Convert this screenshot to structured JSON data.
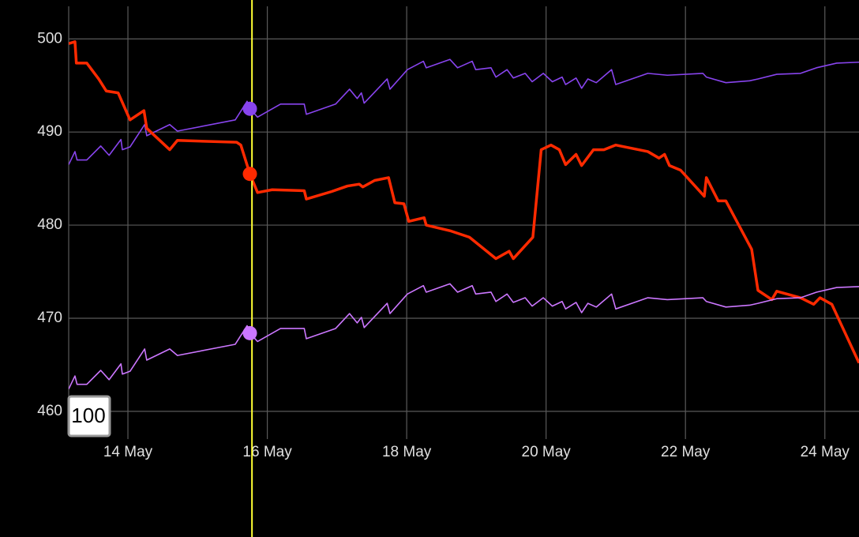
{
  "chart_data": {
    "type": "line",
    "grid": true,
    "xlim": [
      13.15,
      24.49
    ],
    "ylim": [
      457.7,
      503.5
    ],
    "xticks": [
      {
        "value": 14,
        "label": "14 May"
      },
      {
        "value": 16,
        "label": "16 May"
      },
      {
        "value": 18,
        "label": "18 May"
      },
      {
        "value": 20,
        "label": "20 May"
      },
      {
        "value": 22,
        "label": "22 May"
      },
      {
        "value": 24,
        "label": "24 May"
      }
    ],
    "yticks": [
      460,
      470,
      480,
      490,
      500
    ],
    "cursor_x": 15.78,
    "cursor_color": "#ffff33",
    "badge": "100",
    "series": [
      {
        "color": "#8844ee",
        "width": 1.6,
        "x": [
          13.15,
          13.24,
          13.27,
          13.41,
          13.61,
          13.73,
          13.9,
          13.92,
          14.03,
          14.24,
          14.27,
          14.6,
          14.71,
          15.54,
          15.71,
          15.75,
          15.86,
          16.19,
          16.53,
          16.56,
          16.98,
          17.18,
          17.29,
          17.35,
          17.39,
          17.72,
          17.76,
          18.01,
          18.24,
          18.28,
          18.62,
          18.73,
          18.94,
          18.99,
          19.21,
          19.28,
          19.44,
          19.53,
          19.7,
          19.8,
          19.96,
          20.09,
          20.23,
          20.28,
          20.43,
          20.51,
          20.6,
          20.72,
          20.94,
          21.0,
          21.46,
          21.74,
          22.25,
          22.3,
          22.58,
          22.92,
          23.04,
          23.31,
          23.65,
          23.88,
          24.17,
          24.49
        ],
        "values": [
          486.5,
          487.9,
          487,
          487,
          488.5,
          487.5,
          489.2,
          488.1,
          488.4,
          490.8,
          489.6,
          490.8,
          490.1,
          491.3,
          493.3,
          492.5,
          491.6,
          493,
          493,
          491.9,
          493,
          494.6,
          493.6,
          494.2,
          493.1,
          495.7,
          494.6,
          496.7,
          497.6,
          496.9,
          497.8,
          496.9,
          497.6,
          496.7,
          496.9,
          495.9,
          496.7,
          495.8,
          496.3,
          495.4,
          496.3,
          495.4,
          495.9,
          495.1,
          495.8,
          494.7,
          495.7,
          495.3,
          496.7,
          495.1,
          496.3,
          496.1,
          496.3,
          495.9,
          495.3,
          495.5,
          495.7,
          496.2,
          496.3,
          496.9,
          497.4,
          497.5
        ]
      },
      {
        "color": "#ff2a00",
        "width": 3.5,
        "x": [
          13.15,
          13.24,
          13.26,
          13.41,
          13.58,
          13.69,
          13.86,
          14.03,
          14.23,
          14.27,
          14.6,
          14.71,
          15.56,
          15.62,
          15.75,
          15.86,
          16.07,
          16.53,
          16.56,
          16.92,
          17.15,
          17.32,
          17.37,
          17.54,
          17.74,
          17.83,
          17.96,
          18.03,
          18.25,
          18.28,
          18.62,
          18.9,
          19.28,
          19.47,
          19.53,
          19.81,
          19.93,
          20.07,
          20.19,
          20.28,
          20.43,
          20.51,
          20.68,
          20.83,
          21.0,
          21.46,
          21.62,
          21.7,
          21.77,
          21.93,
          22.27,
          22.3,
          22.47,
          22.58,
          22.95,
          23.04,
          23.24,
          23.31,
          23.65,
          23.84,
          23.93,
          24.1,
          24.23,
          24.49
        ],
        "values": [
          499.5,
          499.7,
          497.4,
          497.4,
          495.7,
          494.4,
          494.2,
          491.3,
          492.3,
          490.4,
          488.1,
          489.1,
          488.9,
          488.6,
          485.5,
          483.5,
          483.8,
          483.7,
          482.8,
          483.6,
          484.2,
          484.4,
          484.1,
          484.8,
          485.1,
          482.4,
          482.3,
          480.4,
          480.8,
          480,
          479.4,
          478.7,
          476.4,
          477.2,
          476.4,
          478.7,
          488.1,
          488.6,
          488.1,
          486.5,
          487.6,
          486.4,
          488.1,
          488.1,
          488.6,
          487.9,
          487.2,
          487.6,
          486.4,
          485.9,
          483.1,
          485.1,
          482.6,
          482.6,
          477.4,
          473,
          472,
          472.9,
          472.2,
          471.5,
          472.2,
          471.5,
          469.4,
          465.2
        ]
      },
      {
        "color": "#cc77ff",
        "width": 1.6,
        "x": [
          13.15,
          13.24,
          13.27,
          13.41,
          13.61,
          13.73,
          13.9,
          13.92,
          14.03,
          14.24,
          14.27,
          14.6,
          14.71,
          15.54,
          15.71,
          15.75,
          15.86,
          16.19,
          16.53,
          16.56,
          16.98,
          17.18,
          17.29,
          17.35,
          17.39,
          17.72,
          17.76,
          18.01,
          18.24,
          18.28,
          18.62,
          18.73,
          18.94,
          18.99,
          19.21,
          19.28,
          19.44,
          19.53,
          19.7,
          19.8,
          19.96,
          20.09,
          20.23,
          20.28,
          20.43,
          20.51,
          20.6,
          20.72,
          20.94,
          21.0,
          21.46,
          21.74,
          22.25,
          22.3,
          22.58,
          22.92,
          23.04,
          23.31,
          23.65,
          23.88,
          24.17,
          24.49
        ],
        "values": [
          462.4,
          463.8,
          462.9,
          462.9,
          464.4,
          463.4,
          465.1,
          464,
          464.3,
          466.7,
          465.5,
          466.7,
          466,
          467.2,
          469.2,
          468.4,
          467.5,
          468.9,
          468.9,
          467.8,
          468.9,
          470.5,
          469.5,
          470.1,
          469,
          471.6,
          470.5,
          472.6,
          473.5,
          472.8,
          473.7,
          472.8,
          473.5,
          472.6,
          472.8,
          471.8,
          472.6,
          471.7,
          472.2,
          471.3,
          472.2,
          471.3,
          471.8,
          471,
          471.7,
          470.6,
          471.6,
          471.2,
          472.6,
          471,
          472.2,
          472,
          472.2,
          471.8,
          471.2,
          471.4,
          471.6,
          472.1,
          472.2,
          472.8,
          473.3,
          473.4
        ]
      }
    ]
  }
}
